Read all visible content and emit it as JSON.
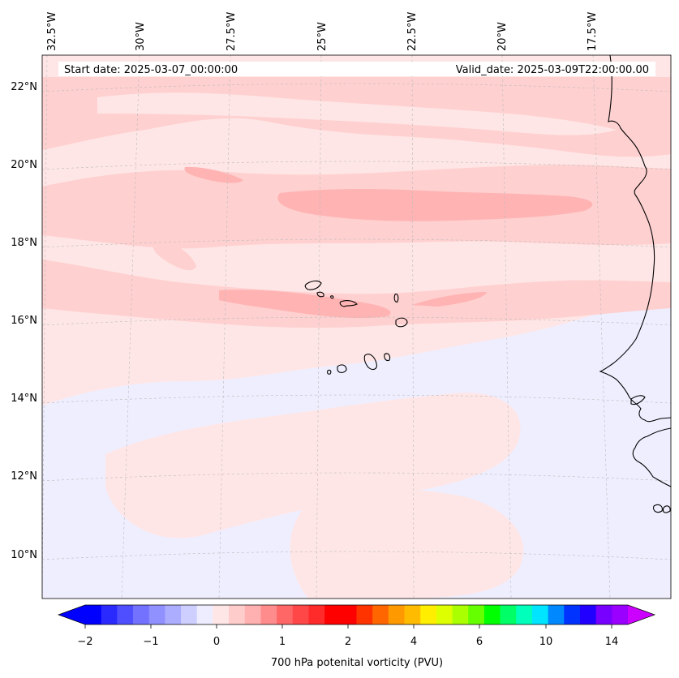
{
  "map": {
    "start_label": "Start date: 2025-03-07_00:00:00",
    "valid_label": "Valid_date: 2025-03-09T22:00:00.00",
    "lat_labels": [
      "22°N",
      "20°N",
      "18°N",
      "16°N",
      "14°N",
      "12°N",
      "10°N"
    ],
    "lon_labels": [
      "32.5°W",
      "30°W",
      "27.5°W",
      "25°W",
      "22.5°W",
      "20°W",
      "17.5°W"
    ],
    "colors": {
      "background_field": "#ffe6e6",
      "band_light": "#ffd0d0",
      "band_mid": "#ffb3b3",
      "band_dark": "#ff9a9a",
      "negative_field": "#eeeeff",
      "coastline": "#000000",
      "gridline": "#bbbbbb"
    }
  },
  "colorbar": {
    "label": "700 hPa potenital vorticity (PVU)",
    "tick_labels": [
      "−2",
      "−1",
      "0",
      "1",
      "2",
      "4",
      "6",
      "10",
      "14"
    ],
    "colors": [
      "#0000ff",
      "#2a2aff",
      "#4f4fff",
      "#7272ff",
      "#9090ff",
      "#adadff",
      "#cfcfff",
      "#ededff",
      "#ffe6e6",
      "#ffcccc",
      "#ffb0b0",
      "#ff8c8c",
      "#ff6666",
      "#ff4747",
      "#ff2a2a",
      "#ff0000",
      "#ff0000",
      "#ff3300",
      "#ff6600",
      "#ff9900",
      "#ffbb00",
      "#ffee00",
      "#ddff00",
      "#aaff00",
      "#66ff00",
      "#00ff00",
      "#00ff66",
      "#00ffbb",
      "#00e5ff",
      "#0088ff",
      "#0033ff",
      "#2200ff",
      "#7700ff",
      "#9900ff"
    ],
    "extend_min_color": "#0000ff",
    "extend_max_color": "#cc00ff"
  }
}
